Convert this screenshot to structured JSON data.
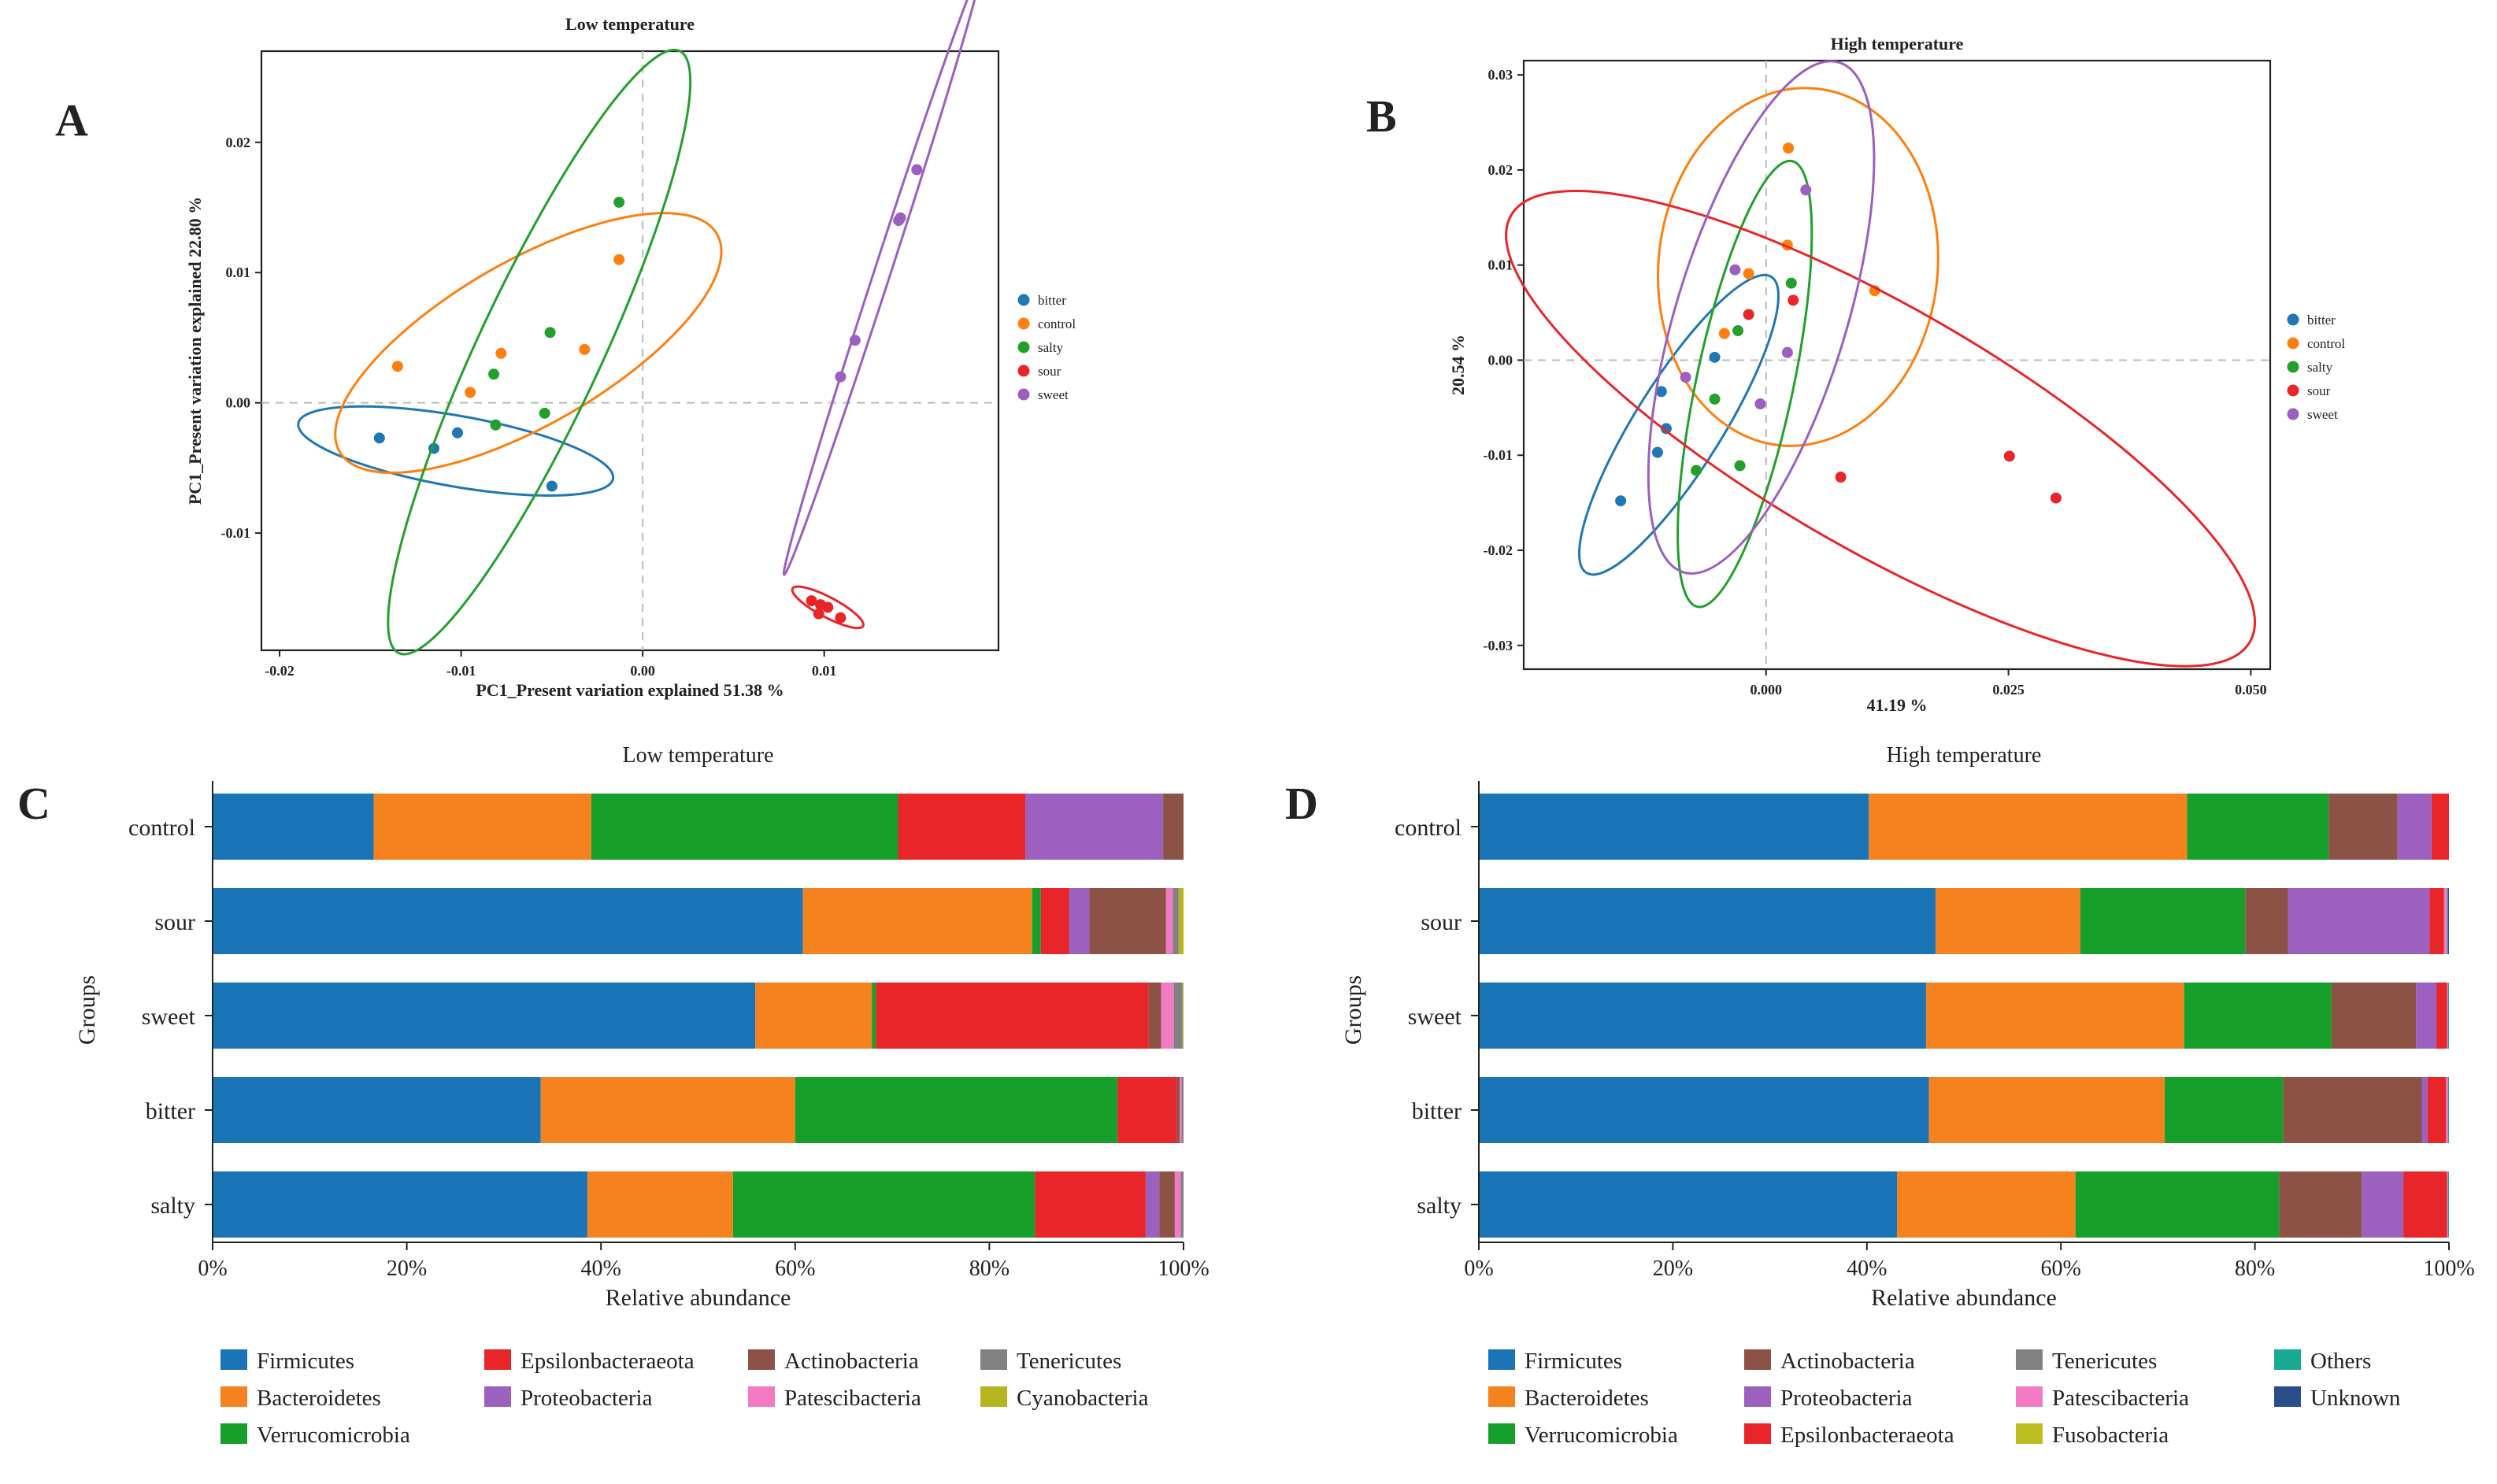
{
  "colors": {
    "bitter": "#1f77b4",
    "control": "#ff7f0e",
    "salty": "#22a02c",
    "sour": "#e8262a",
    "sweet": "#9b5fc0",
    "Firmicutes": "#1b74b6",
    "Bacteroidetes": "#f5821f",
    "Verrucomicrobia": "#16a02b",
    "Epsilonbacteraeota": "#e8262a",
    "Proteobacteria": "#9c61bf",
    "Actinobacteria": "#8c5246",
    "Patescibacteria": "#f27ac5",
    "Tenericutes": "#818181",
    "Cyanobacteria": "#b6b51f",
    "Fusobacteria": "#bdbd22",
    "Others": "#17a991",
    "Unknown": "#2c4d8c"
  },
  "panel_labels": {
    "A": "A",
    "B": "B",
    "C": "C",
    "D": "D"
  },
  "chart_data": [
    {
      "panel": "A",
      "type": "scatter",
      "title": "Low temperature",
      "xlabel": "PC1_Present variation explained 51.38 %",
      "ylabel": "PC1_Present variation explained 22.80 %",
      "xlim": [
        -0.021,
        0.0196
      ],
      "ylim": [
        -0.019,
        0.027
      ],
      "xticks": [
        -0.02,
        -0.01,
        0.0,
        0.01
      ],
      "xtick_labels": [
        "-0.02",
        "-0.01",
        "0.00",
        "0.01"
      ],
      "yticks": [
        -0.01,
        0.0,
        0.01,
        0.02
      ],
      "ytick_labels": [
        "-0.01",
        "0.00",
        "0.01",
        "0.02"
      ],
      "legend": [
        "bitter",
        "control",
        "salty",
        "sour",
        "sweet"
      ],
      "series": [
        {
          "name": "bitter",
          "points": [
            [
              -0.0145,
              -0.0027
            ],
            [
              -0.0102,
              -0.0023
            ],
            [
              -0.0115,
              -0.0035
            ],
            [
              -0.005,
              -0.0064
            ]
          ],
          "ellipse": {
            "cx": -0.0103,
            "cy": -0.0037,
            "rx": 0.0088,
            "ry": 0.00195,
            "angle": -10
          }
        },
        {
          "name": "control",
          "points": [
            [
              -0.0135,
              0.0028
            ],
            [
              -0.0095,
              0.0008
            ],
            [
              -0.0078,
              0.0038
            ],
            [
              -0.0032,
              0.0041
            ],
            [
              -0.0013,
              0.011
            ]
          ],
          "ellipse": {
            "cx": -0.0063,
            "cy": 0.0046,
            "rx": 0.012,
            "ry": 0.0045,
            "angle": 30
          }
        },
        {
          "name": "salty",
          "points": [
            [
              -0.0082,
              0.0022
            ],
            [
              -0.0081,
              -0.0017
            ],
            [
              -0.0051,
              0.0054
            ],
            [
              -0.0054,
              -0.0008
            ],
            [
              -0.0013,
              0.0154
            ]
          ],
          "ellipse": {
            "cx": -0.0057,
            "cy": 0.0039,
            "rx": 0.0183,
            "ry": 0.0034,
            "angle": 65
          }
        },
        {
          "name": "sour",
          "points": [
            [
              0.0093,
              -0.0152
            ],
            [
              0.0098,
              -0.0155
            ],
            [
              0.0102,
              -0.0157
            ],
            [
              0.0097,
              -0.0162
            ],
            [
              0.0109,
              -0.0165
            ]
          ],
          "ellipse": {
            "cx": 0.0102,
            "cy": -0.0157,
            "rx": 0.0022,
            "ry": 0.00055,
            "angle": -28
          }
        },
        {
          "name": "sweet",
          "points": [
            [
              0.0109,
              0.002
            ],
            [
              0.0117,
              0.0048
            ],
            [
              0.0141,
              0.014
            ],
            [
              0.0142,
              0.0142
            ],
            [
              0.0151,
              0.0179
            ]
          ],
          "ellipse": {
            "cx": 0.0132,
            "cy": 0.01,
            "rx": 0.0175,
            "ry": 0.00045,
            "angle": 72
          }
        }
      ]
    },
    {
      "panel": "B",
      "type": "scatter",
      "title": "High temperature",
      "xlabel": "41.19 %",
      "ylabel": "20.54 %",
      "xlim": [
        -0.025,
        0.052
      ],
      "ylim": [
        -0.0325,
        0.0315
      ],
      "xticks": [
        0.0,
        0.025,
        0.05
      ],
      "xtick_labels": [
        "0.000",
        "0.025",
        "0.050"
      ],
      "yticks": [
        -0.03,
        -0.02,
        -0.01,
        0.0,
        0.01,
        0.02,
        0.03
      ],
      "ytick_labels": [
        "-0.03",
        "-0.02",
        "-0.01",
        "0.00",
        "0.01",
        "0.02",
        "0.03"
      ],
      "legend": [
        "bitter",
        "control",
        "salty",
        "sour",
        "sweet"
      ],
      "series": [
        {
          "name": "bitter",
          "points": [
            [
              -0.015,
              -0.0148
            ],
            [
              -0.0112,
              -0.0097
            ],
            [
              -0.0103,
              -0.0072
            ],
            [
              -0.0108,
              -0.0033
            ],
            [
              -0.0053,
              0.0003
            ]
          ],
          "ellipse": {
            "cx": -0.009,
            "cy": -0.0068,
            "rx": 0.018,
            "ry": 0.0045,
            "angle": 58
          }
        },
        {
          "name": "control",
          "points": [
            [
              -0.0043,
              0.0028
            ],
            [
              -0.0018,
              0.0091
            ],
            [
              0.0023,
              0.0223
            ],
            [
              0.0022,
              0.0121
            ],
            [
              0.0112,
              0.0073
            ]
          ],
          "ellipse": {
            "cx": 0.0033,
            "cy": 0.0098,
            "rx": 0.0185,
            "ry": 0.0144,
            "angle": 84
          }
        },
        {
          "name": "salty",
          "points": [
            [
              -0.0072,
              -0.0116
            ],
            [
              -0.0053,
              -0.0041
            ],
            [
              -0.0027,
              -0.0111
            ],
            [
              -0.0029,
              0.0031
            ],
            [
              0.0026,
              0.0081
            ]
          ],
          "ellipse": {
            "cx": -0.0022,
            "cy": -0.0025,
            "rx": 0.0235,
            "ry": 0.005,
            "angle": 78
          }
        },
        {
          "name": "sour",
          "points": [
            [
              -0.0018,
              0.0048
            ],
            [
              0.0028,
              0.0063
            ],
            [
              0.0077,
              -0.0123
            ],
            [
              0.0251,
              -0.0101
            ],
            [
              0.0299,
              -0.0145
            ]
          ],
          "ellipse": {
            "cx": 0.0118,
            "cy": -0.0072,
            "rx": 0.044,
            "ry": 0.0125,
            "angle": -30
          }
        },
        {
          "name": "sweet",
          "points": [
            [
              -0.0083,
              -0.0018
            ],
            [
              -0.0032,
              0.0095
            ],
            [
              0.0041,
              0.0179
            ],
            [
              0.0022,
              0.0008
            ],
            [
              -0.0006,
              -0.0046
            ]
          ],
          "ellipse": {
            "cx": -0.0005,
            "cy": 0.0045,
            "rx": 0.0275,
            "ry": 0.0088,
            "angle": 73
          }
        }
      ]
    },
    {
      "panel": "C",
      "type": "stacked_bar_horizontal",
      "title": "Low temperature",
      "xlabel": "Relative abundance",
      "ylabel": "Groups",
      "xlim": [
        0,
        100
      ],
      "xtick_labels": [
        "0%",
        "20%",
        "40%",
        "60%",
        "80%",
        "100%"
      ],
      "categories": [
        "control",
        "sour",
        "sweet",
        "bitter",
        "salty"
      ],
      "legend_columns": [
        [
          "Firmicutes",
          "Bacteroidetes",
          "Verrucomicrobia"
        ],
        [
          "Epsilonbacteraeota",
          "Proteobacteria"
        ],
        [
          "Actinobacteria",
          "Patescibacteria"
        ],
        [
          "Tenericutes",
          "Cyanobacteria"
        ]
      ],
      "series": [
        {
          "name": "Firmicutes",
          "values": [
            16.6,
            60.8,
            55.9,
            33.8,
            38.6
          ]
        },
        {
          "name": "Bacteroidetes",
          "values": [
            22.4,
            23.6,
            12.0,
            26.2,
            15.0
          ]
        },
        {
          "name": "Verrucomicrobia",
          "values": [
            31.6,
            0.9,
            0.4,
            33.2,
            31.1
          ]
        },
        {
          "name": "Epsilonbacteraeota",
          "values": [
            13.1,
            2.9,
            28.1,
            6.1,
            11.4
          ]
        },
        {
          "name": "Proteobacteria",
          "values": [
            14.2,
            2.1,
            0.0,
            0.0,
            1.4
          ]
        },
        {
          "name": "Actinobacteria",
          "values": [
            2.1,
            7.9,
            1.3,
            0.3,
            1.6
          ]
        },
        {
          "name": "Patescibacteria",
          "values": [
            0.0,
            0.7,
            1.3,
            0.2,
            0.6
          ]
        },
        {
          "name": "Tenericutes",
          "values": [
            0.0,
            0.6,
            0.9,
            0.2,
            0.3
          ]
        },
        {
          "name": "Cyanobacteria",
          "values": [
            0.0,
            0.5,
            0.1,
            0.0,
            0.0
          ]
        }
      ]
    },
    {
      "panel": "D",
      "type": "stacked_bar_horizontal",
      "title": "High temperature",
      "xlabel": "Relative abundance",
      "ylabel": "Groups",
      "xlim": [
        0,
        100
      ],
      "xtick_labels": [
        "0%",
        "20%",
        "40%",
        "60%",
        "80%",
        "100%"
      ],
      "categories": [
        "control",
        "sour",
        "sweet",
        "bitter",
        "salty"
      ],
      "legend_columns": [
        [
          "Firmicutes",
          "Bacteroidetes",
          "Verrucomicrobia"
        ],
        [
          "Actinobacteria",
          "Proteobacteria",
          "Epsilonbacteraeota"
        ],
        [
          "Tenericutes",
          "Patescibacteria",
          "Fusobacteria"
        ],
        [
          "Others",
          "Unknown"
        ]
      ],
      "series": [
        {
          "name": "Firmicutes",
          "values": [
            40.2,
            47.1,
            46.1,
            46.4,
            43.1
          ]
        },
        {
          "name": "Bacteroidetes",
          "values": [
            32.8,
            14.9,
            26.6,
            24.3,
            18.4
          ]
        },
        {
          "name": "Verrucomicrobia",
          "values": [
            14.6,
            17.0,
            15.2,
            12.2,
            21.0
          ]
        },
        {
          "name": "Actinobacteria",
          "values": [
            7.1,
            4.4,
            8.7,
            14.3,
            8.5
          ]
        },
        {
          "name": "Proteobacteria",
          "values": [
            3.5,
            14.6,
            2.1,
            0.6,
            4.3
          ]
        },
        {
          "name": "Epsilonbacteraeota",
          "values": [
            1.8,
            1.5,
            1.1,
            1.9,
            4.5
          ]
        },
        {
          "name": "Tenericutes",
          "values": [
            0.0,
            0.0,
            0.0,
            0.0,
            0.0
          ]
        },
        {
          "name": "Patescibacteria",
          "values": [
            0.0,
            0.3,
            0.1,
            0.2,
            0.1
          ]
        },
        {
          "name": "Fusobacteria",
          "values": [
            0.0,
            0.0,
            0.0,
            0.0,
            0.0
          ]
        },
        {
          "name": "Others",
          "values": [
            0.0,
            0.1,
            0.1,
            0.1,
            0.1
          ]
        },
        {
          "name": "Unknown",
          "values": [
            0.0,
            0.1,
            0.0,
            0.0,
            0.0
          ]
        }
      ]
    }
  ]
}
